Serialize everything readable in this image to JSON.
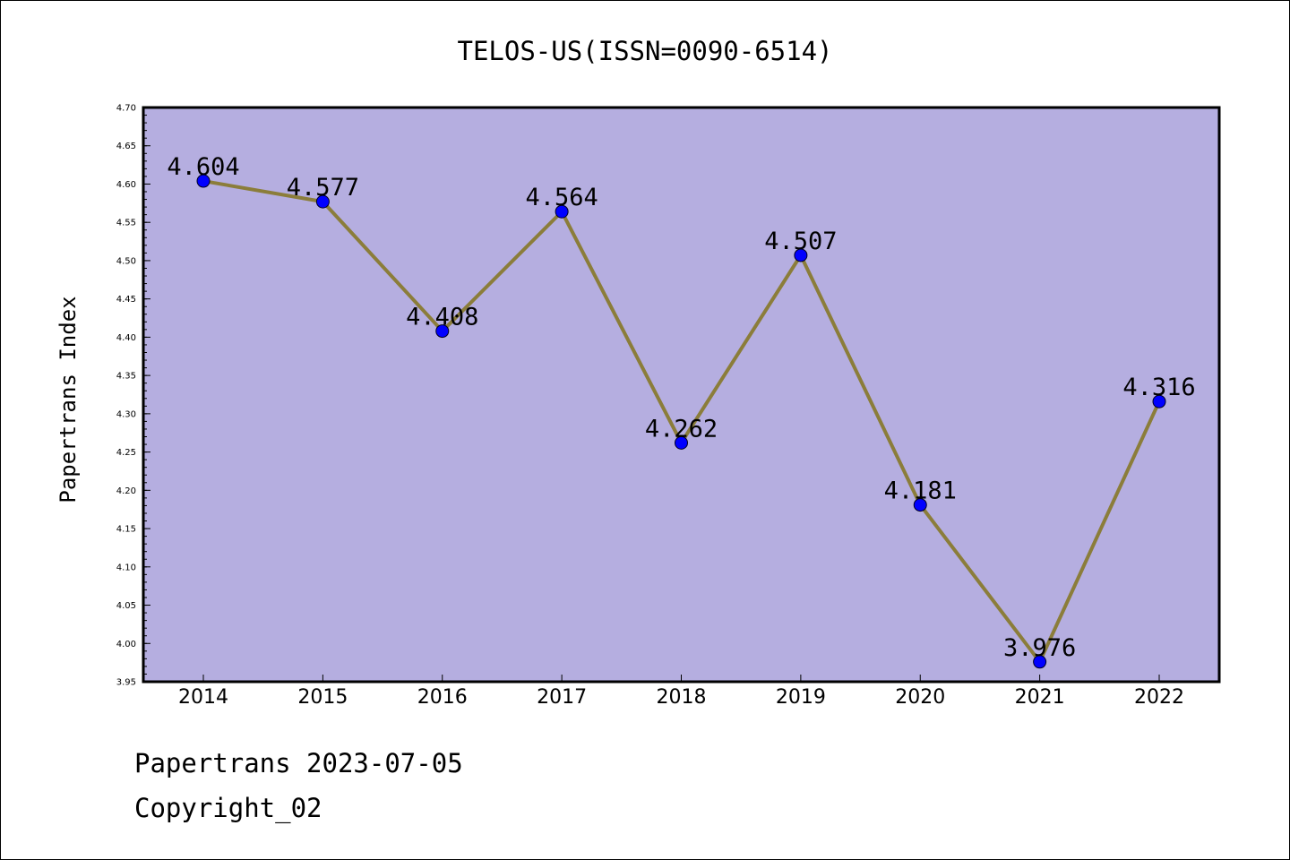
{
  "chart_data": {
    "type": "line",
    "title": "TELOS-US(ISSN=0090-6514)",
    "xlabel": "",
    "ylabel": "Papertrans Index",
    "categories": [
      "2014",
      "2015",
      "2016",
      "2017",
      "2018",
      "2019",
      "2020",
      "2021",
      "2022"
    ],
    "series": [
      {
        "values": [
          4.604,
          4.577,
          4.408,
          4.564,
          4.262,
          4.507,
          4.181,
          3.976,
          4.316
        ],
        "value_labels": [
          "4.604",
          "4.577",
          "4.408",
          "4.564",
          "4.262",
          "4.507",
          "4.181",
          "3.976",
          "4.316"
        ],
        "line_color": "#8b7d3a",
        "marker_color": "#0000ff"
      }
    ],
    "ylim": [
      3.95,
      4.7
    ],
    "yticks": [
      "3.95",
      "4.00",
      "4.05",
      "4.10",
      "4.15",
      "4.20",
      "4.25",
      "4.30",
      "4.35",
      "4.40",
      "4.45",
      "4.50",
      "4.55",
      "4.60",
      "4.65",
      "4.70"
    ],
    "grid": false,
    "legend": "none",
    "plot_background": "#b5aee0"
  },
  "footer": {
    "line1": "Papertrans 2023-07-05",
    "line2": "Copyright_02"
  }
}
